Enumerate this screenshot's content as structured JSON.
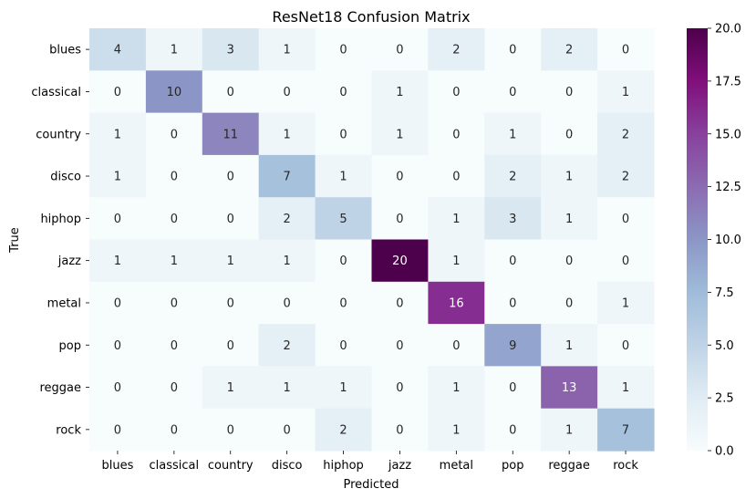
{
  "chart_data": {
    "type": "heatmap",
    "title": "ResNet18 Confusion Matrix",
    "xlabel": "Predicted",
    "ylabel": "True",
    "x_categories": [
      "blues",
      "classical",
      "country",
      "disco",
      "hiphop",
      "jazz",
      "metal",
      "pop",
      "reggae",
      "rock"
    ],
    "y_categories": [
      "blues",
      "classical",
      "country",
      "disco",
      "hiphop",
      "jazz",
      "metal",
      "pop",
      "reggae",
      "rock"
    ],
    "values": [
      [
        4,
        1,
        3,
        1,
        0,
        0,
        2,
        0,
        2,
        0
      ],
      [
        0,
        10,
        0,
        0,
        0,
        1,
        0,
        0,
        0,
        1
      ],
      [
        1,
        0,
        11,
        1,
        0,
        1,
        0,
        1,
        0,
        2
      ],
      [
        1,
        0,
        0,
        7,
        1,
        0,
        0,
        2,
        1,
        2
      ],
      [
        0,
        0,
        0,
        2,
        5,
        0,
        1,
        3,
        1,
        0
      ],
      [
        1,
        1,
        1,
        1,
        0,
        20,
        1,
        0,
        0,
        0
      ],
      [
        0,
        0,
        0,
        0,
        0,
        0,
        16,
        0,
        0,
        1
      ],
      [
        0,
        0,
        0,
        2,
        0,
        0,
        0,
        9,
        1,
        0
      ],
      [
        0,
        0,
        1,
        1,
        1,
        0,
        1,
        0,
        13,
        1
      ],
      [
        0,
        0,
        0,
        0,
        2,
        0,
        1,
        0,
        1,
        7
      ]
    ],
    "colormap": "BuPu",
    "value_range": [
      0,
      20
    ],
    "colorbar_ticks": [
      "0.0",
      "2.5",
      "5.0",
      "7.5",
      "10.0",
      "12.5",
      "15.0",
      "17.5",
      "20.0"
    ],
    "annotations": true
  }
}
